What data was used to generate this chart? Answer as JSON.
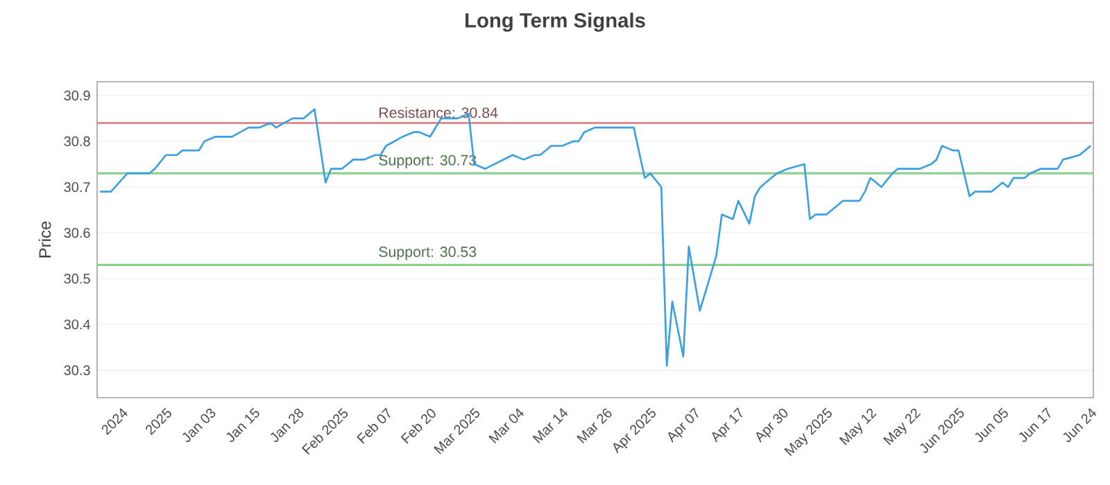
{
  "chart_data": {
    "type": "line",
    "title": "Long Term Signals",
    "ylabel": "Price",
    "categories": [
      null,
      null,
      null,
      null,
      "2024",
      null,
      null,
      null,
      null,
      null,
      null,
      null,
      "2025",
      null,
      null,
      null,
      null,
      null,
      null,
      null,
      "Jan 03",
      null,
      null,
      null,
      null,
      null,
      null,
      null,
      "Jan 15",
      null,
      null,
      null,
      null,
      null,
      null,
      null,
      "Jan 28",
      null,
      null,
      null,
      null,
      null,
      null,
      null,
      "Feb 2025",
      null,
      null,
      null,
      null,
      null,
      null,
      null,
      "Feb 07",
      null,
      null,
      null,
      null,
      null,
      null,
      null,
      "Feb 20",
      null,
      null,
      null,
      null,
      null,
      null,
      null,
      "Mar 2025",
      null,
      null,
      null,
      null,
      null,
      null,
      null,
      "Mar 04",
      null,
      null,
      null,
      null,
      null,
      null,
      null,
      "Mar 14",
      null,
      null,
      null,
      null,
      null,
      null,
      null,
      "Mar 26",
      null,
      null,
      null,
      null,
      null,
      null,
      null,
      "Apr 2025",
      null,
      null,
      null,
      null,
      null,
      null,
      null,
      "Apr 07",
      null,
      null,
      null,
      null,
      null,
      null,
      null,
      "Apr 17",
      null,
      null,
      null,
      null,
      null,
      null,
      null,
      "Apr 30",
      null,
      null,
      null,
      null,
      null,
      null,
      null,
      "May 2025",
      null,
      null,
      null,
      null,
      null,
      null,
      null,
      "May 12",
      null,
      null,
      null,
      null,
      null,
      null,
      null,
      "May 22",
      null,
      null,
      null,
      null,
      null,
      null,
      null,
      "Jun 2025",
      null,
      null,
      null,
      null,
      null,
      null,
      null,
      "Jun 05",
      null,
      null,
      null,
      null,
      null,
      null,
      null,
      "Jun 17",
      null,
      null,
      null,
      null,
      null,
      null,
      null,
      "Jun 24"
    ],
    "series": [
      {
        "color": "#3aa0e0",
        "values": [
          30.69,
          null,
          30.69,
          null,
          null,
          30.73,
          null,
          null,
          null,
          30.73,
          30.74,
          null,
          30.77,
          null,
          30.77,
          30.78,
          null,
          null,
          30.78,
          30.8,
          null,
          30.81,
          null,
          null,
          30.81,
          null,
          null,
          30.83,
          null,
          30.83,
          null,
          30.84,
          30.83,
          null,
          null,
          30.85,
          null,
          30.85,
          null,
          30.87,
          null,
          30.71,
          30.74,
          null,
          30.74,
          null,
          30.76,
          null,
          30.76,
          null,
          30.77,
          30.77,
          30.79,
          null,
          null,
          30.81,
          null,
          30.82,
          30.82,
          null,
          30.81,
          null,
          30.85,
          null,
          null,
          30.85,
          null,
          30.86,
          30.75,
          null,
          30.74,
          null,
          null,
          null,
          null,
          30.77,
          null,
          30.76,
          null,
          30.77,
          30.77,
          null,
          30.79,
          null,
          30.79,
          null,
          30.8,
          30.8,
          30.82,
          null,
          30.83,
          null,
          null,
          null,
          30.83,
          null,
          30.83,
          30.83,
          null,
          30.72,
          30.73,
          null,
          30.7,
          30.31,
          30.45,
          null,
          30.33,
          30.57,
          null,
          30.43,
          30.47,
          null,
          30.55,
          30.64,
          null,
          30.63,
          30.67,
          null,
          30.62,
          30.68,
          30.7,
          null,
          30.72,
          30.73,
          null,
          30.74,
          null,
          null,
          30.75,
          30.63,
          30.64,
          null,
          30.64,
          null,
          null,
          30.67,
          null,
          null,
          30.67,
          30.69,
          30.72,
          null,
          30.7,
          null,
          30.73,
          30.74,
          null,
          null,
          null,
          30.74,
          null,
          30.75,
          30.76,
          30.79,
          null,
          30.78,
          30.78,
          null,
          30.68,
          30.69,
          null,
          30.69,
          30.69,
          null,
          30.71,
          30.7,
          30.72,
          null,
          30.72,
          30.73,
          null,
          30.74,
          30.74,
          null,
          30.74,
          30.76,
          null,
          null,
          30.77,
          null,
          30.79
        ]
      }
    ],
    "ylim": [
      30.24,
      30.93
    ],
    "yticks": [
      30.3,
      30.4,
      30.5,
      30.6,
      30.7,
      30.8,
      30.9
    ],
    "ref_lines": [
      {
        "axis": "y",
        "value": 30.84,
        "label": "Resistance: 30.84",
        "color": "#e08c8c"
      },
      {
        "axis": "y",
        "value": 30.73,
        "label": "Support: 30.73",
        "color": "#8fd08f"
      },
      {
        "axis": "y",
        "value": 30.53,
        "label": "Support: 30.53",
        "color": "#8fd08f"
      }
    ],
    "grid": "y",
    "marker": "none",
    "line_style": "solid"
  }
}
